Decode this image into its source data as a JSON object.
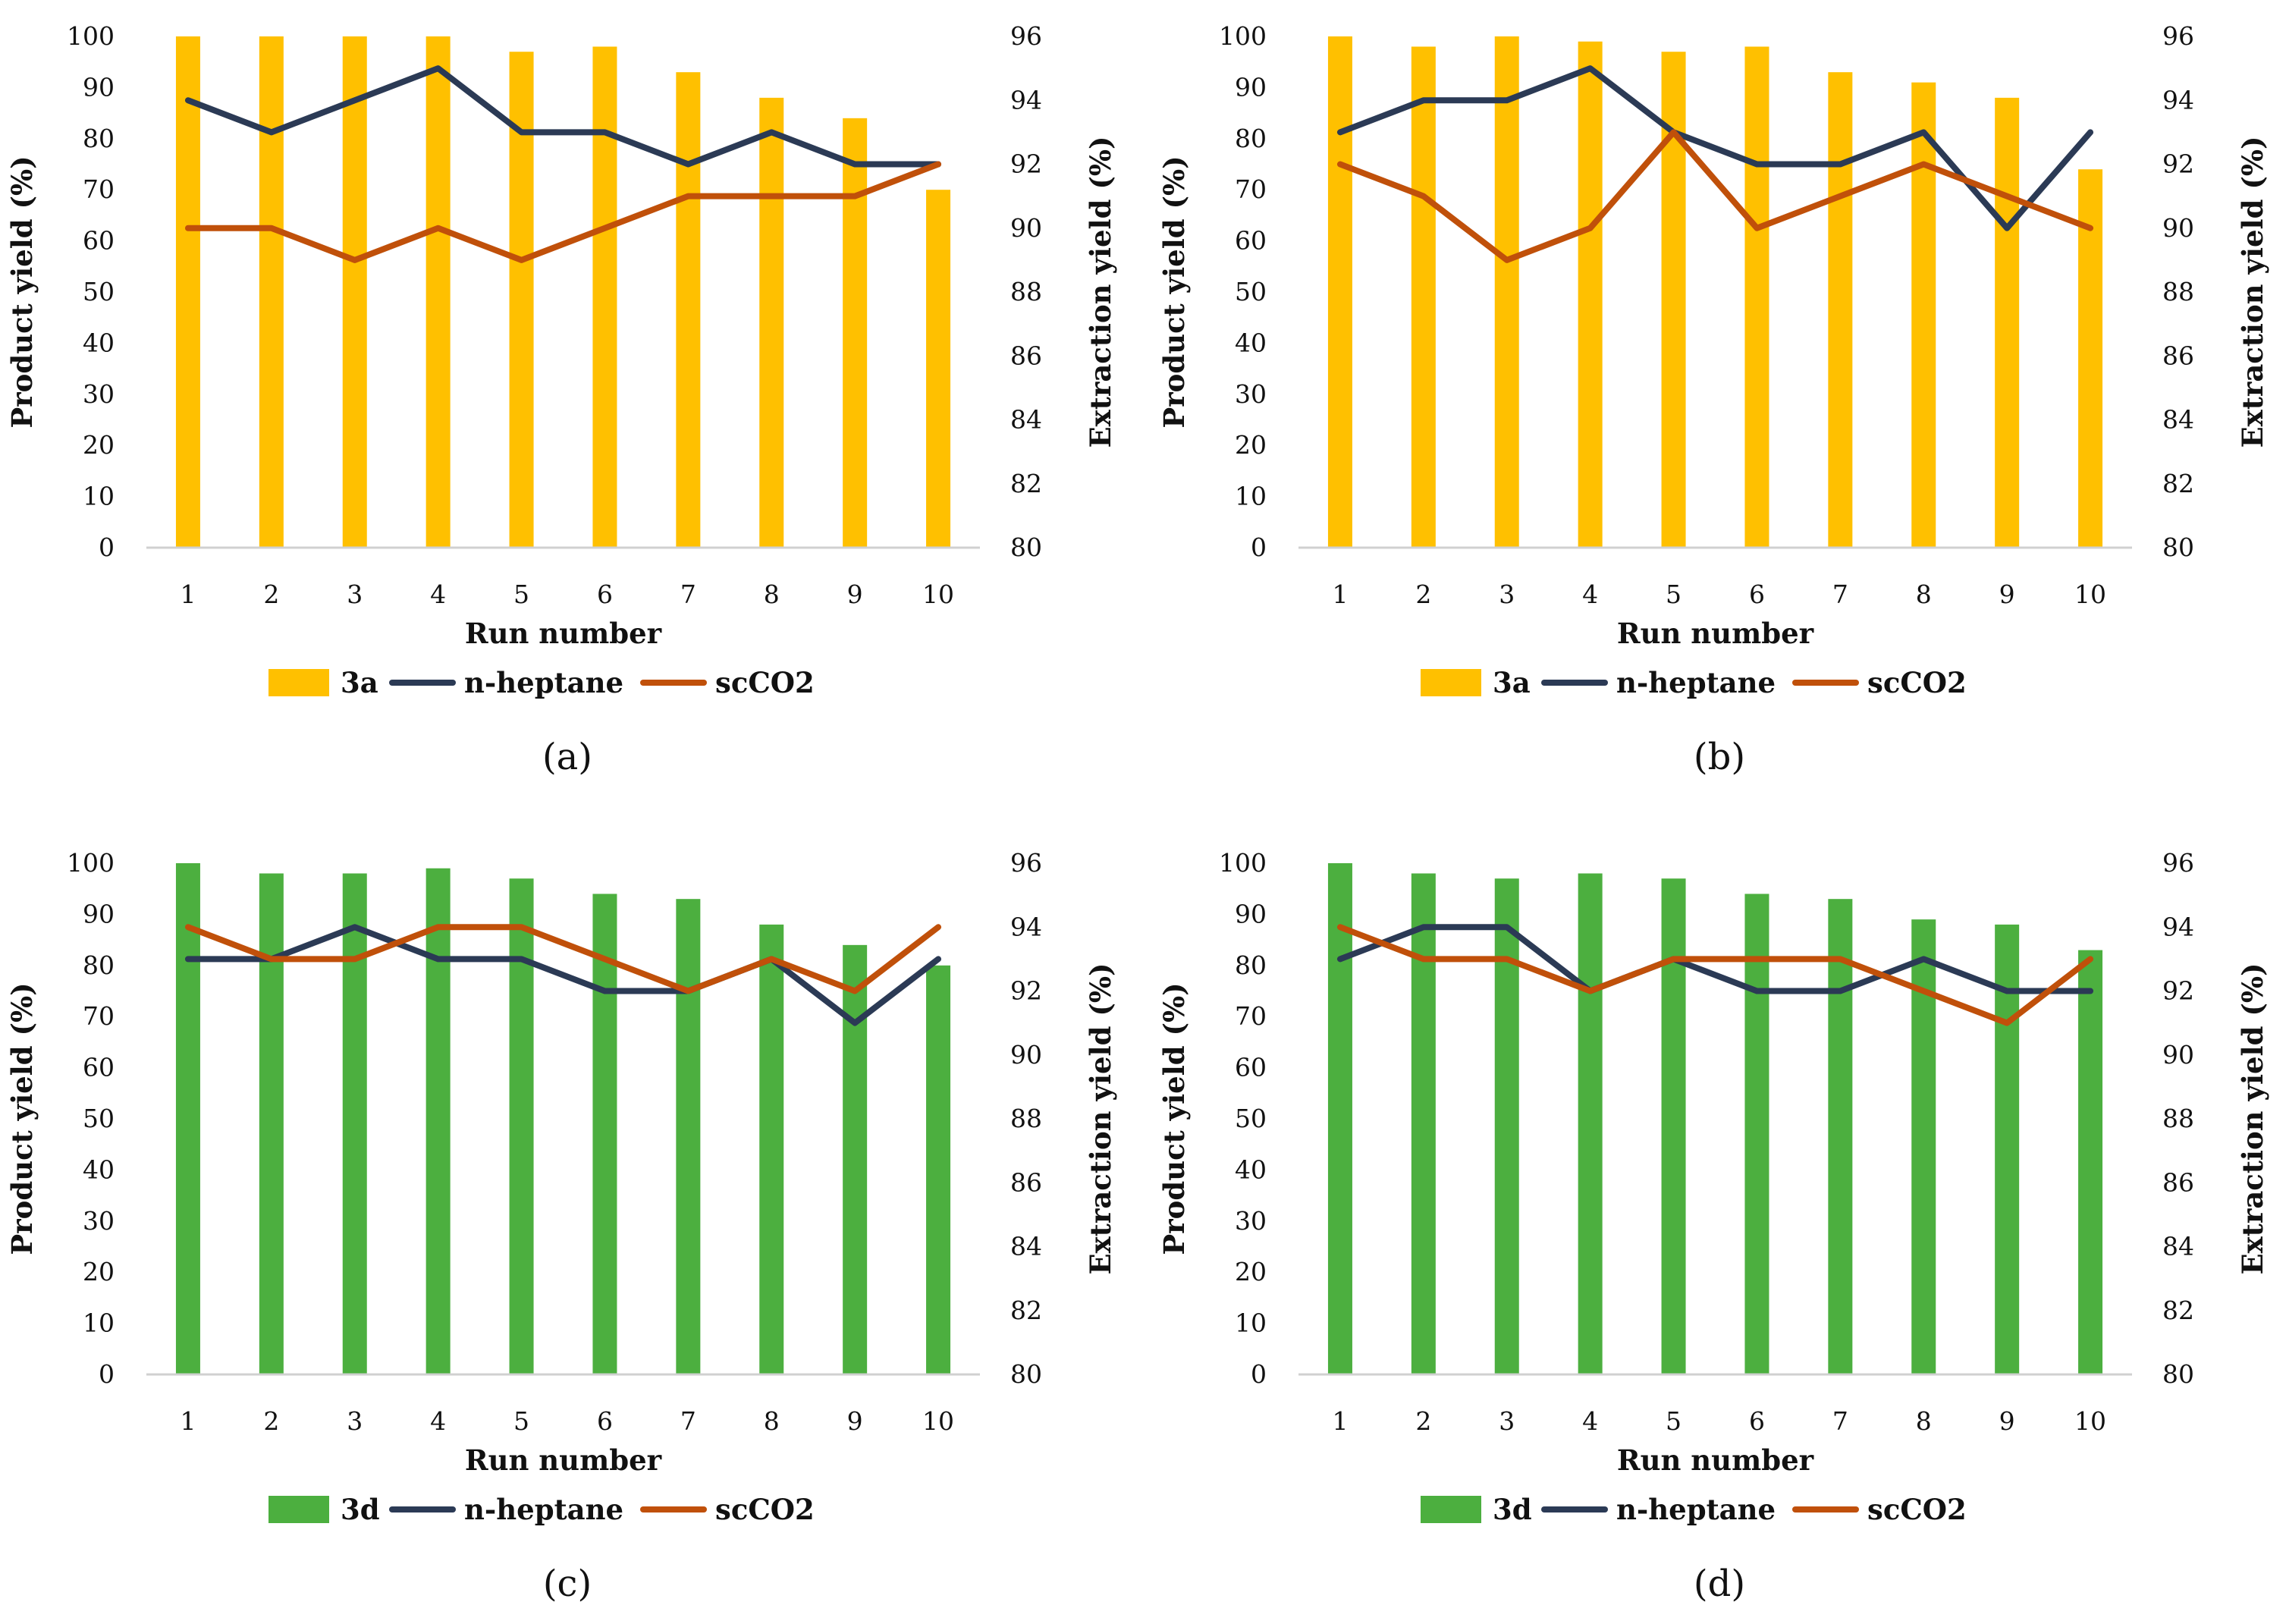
{
  "chart_data": [
    {
      "type": "bar",
      "caption": "(a)",
      "categories": [
        "1",
        "2",
        "3",
        "4",
        "5",
        "6",
        "7",
        "8",
        "9",
        "10"
      ],
      "bar_series": {
        "name": "3a",
        "color": "#FFC000",
        "axis": "left",
        "values": [
          100,
          100,
          100,
          100,
          97,
          98,
          93,
          88,
          84,
          70
        ]
      },
      "line_series": [
        {
          "name": "n-heptane",
          "color": "#2B3A55",
          "axis": "right",
          "values": [
            94,
            93,
            94,
            95,
            93,
            93,
            92,
            93,
            92,
            92
          ]
        },
        {
          "name": "scCO2",
          "color": "#C0500A",
          "axis": "right",
          "values": [
            90,
            90,
            89,
            90,
            89,
            90,
            91,
            91,
            91,
            92
          ]
        }
      ],
      "xlabel": "Run number",
      "ylabel": "Product yield  (%)",
      "y2label": "Extraction yield  (%)",
      "ylim": [
        0,
        100
      ],
      "yticks": [
        "0",
        "10",
        "20",
        "30",
        "40",
        "50",
        "60",
        "70",
        "80",
        "90",
        "100"
      ],
      "y2lim": [
        80,
        96
      ],
      "y2ticks": [
        "80",
        "82",
        "84",
        "86",
        "88",
        "90",
        "92",
        "94",
        "96"
      ],
      "legend": "bottom",
      "grid": false
    },
    {
      "type": "bar",
      "caption": "(b)",
      "categories": [
        "1",
        "2",
        "3",
        "4",
        "5",
        "6",
        "7",
        "8",
        "9",
        "10"
      ],
      "bar_series": {
        "name": "3a",
        "color": "#FFC000",
        "axis": "left",
        "values": [
          100,
          98,
          100,
          99,
          97,
          98,
          93,
          91,
          88,
          74
        ]
      },
      "line_series": [
        {
          "name": "n-heptane",
          "color": "#2B3A55",
          "axis": "right",
          "values": [
            93,
            94,
            94,
            95,
            93,
            92,
            92,
            93,
            90,
            93
          ]
        },
        {
          "name": "scCO2",
          "color": "#C0500A",
          "axis": "right",
          "values": [
            92,
            91,
            89,
            90,
            93,
            90,
            91,
            92,
            91,
            90
          ]
        }
      ],
      "xlabel": "Run number",
      "ylabel": "Product yield  (%)",
      "y2label": "Extraction yield  (%)",
      "ylim": [
        0,
        100
      ],
      "yticks": [
        "0",
        "10",
        "20",
        "30",
        "40",
        "50",
        "60",
        "70",
        "80",
        "90",
        "100"
      ],
      "y2lim": [
        80,
        96
      ],
      "y2ticks": [
        "80",
        "82",
        "84",
        "86",
        "88",
        "90",
        "92",
        "94",
        "96"
      ],
      "legend": "bottom",
      "grid": false
    },
    {
      "type": "bar",
      "caption": "(c)",
      "categories": [
        "1",
        "2",
        "3",
        "4",
        "5",
        "6",
        "7",
        "8",
        "9",
        "10"
      ],
      "bar_series": {
        "name": "3d",
        "color": "#4CAF3F",
        "axis": "left",
        "values": [
          100,
          98,
          98,
          99,
          97,
          94,
          93,
          88,
          84,
          80
        ]
      },
      "line_series": [
        {
          "name": "n-heptane",
          "color": "#2B3A55",
          "axis": "right",
          "values": [
            93,
            93,
            94,
            93,
            93,
            92,
            92,
            93,
            91,
            93
          ]
        },
        {
          "name": "scCO2",
          "color": "#C0500A",
          "axis": "right",
          "values": [
            94,
            93,
            93,
            94,
            94,
            93,
            92,
            93,
            92,
            94
          ]
        }
      ],
      "xlabel": "Run number",
      "ylabel": "Product yield  (%)",
      "y2label": "Extraction yield  (%)",
      "ylim": [
        0,
        100
      ],
      "yticks": [
        "0",
        "10",
        "20",
        "30",
        "40",
        "50",
        "60",
        "70",
        "80",
        "90",
        "100"
      ],
      "y2lim": [
        80,
        96
      ],
      "y2ticks": [
        "80",
        "82",
        "84",
        "86",
        "88",
        "90",
        "92",
        "94",
        "96"
      ],
      "legend": "bottom",
      "grid": false
    },
    {
      "type": "bar",
      "caption": "(d)",
      "categories": [
        "1",
        "2",
        "3",
        "4",
        "5",
        "6",
        "7",
        "8",
        "9",
        "10"
      ],
      "bar_series": {
        "name": "3d",
        "color": "#4CAF3F",
        "axis": "left",
        "values": [
          100,
          98,
          97,
          98,
          97,
          94,
          93,
          89,
          88,
          83
        ]
      },
      "line_series": [
        {
          "name": "n-heptane",
          "color": "#2B3A55",
          "axis": "right",
          "values": [
            93,
            94,
            94,
            92,
            93,
            92,
            92,
            93,
            92,
            92
          ]
        },
        {
          "name": "scCO2",
          "color": "#C0500A",
          "axis": "right",
          "values": [
            94,
            93,
            93,
            92,
            93,
            93,
            93,
            92,
            91,
            93
          ]
        }
      ],
      "xlabel": "Run number",
      "ylabel": "Product yield  (%)",
      "y2label": "Extraction yield  (%)",
      "ylim": [
        0,
        100
      ],
      "yticks": [
        "0",
        "10",
        "20",
        "30",
        "40",
        "50",
        "60",
        "70",
        "80",
        "90",
        "100"
      ],
      "y2lim": [
        80,
        96
      ],
      "y2ticks": [
        "80",
        "82",
        "84",
        "86",
        "88",
        "90",
        "92",
        "94",
        "96"
      ],
      "legend": "bottom",
      "grid": false
    }
  ]
}
